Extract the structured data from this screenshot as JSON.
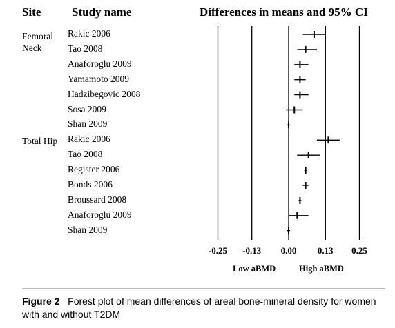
{
  "header": {
    "site": "Site",
    "study": "Study name",
    "plot_title": "Differences in means and 95% CI"
  },
  "sites": [
    "Femoral\nNeck",
    "Total Hip"
  ],
  "direction_labels": {
    "left": "Low aBMD",
    "right": "High aBMD"
  },
  "caption": {
    "figure_label": "Figure 2",
    "text": "Forest plot of mean differences of areal bone-mineral density for women with and without T2DM"
  },
  "chart_data": {
    "type": "forest",
    "title": "Differences in means and 95% CI",
    "x_ticks": [
      -0.25,
      -0.13,
      0.0,
      0.13,
      0.25
    ],
    "x_tick_labels": [
      "-0.25",
      "-0.13",
      "0.00",
      "0.13",
      "0.25"
    ],
    "xlim": [
      -0.25,
      0.25
    ],
    "groups": [
      {
        "site": "Femoral Neck",
        "studies": [
          {
            "name": "Rakic 2006",
            "mean": 0.09,
            "lower": 0.05,
            "upper": 0.13
          },
          {
            "name": "Tao 2008",
            "mean": 0.06,
            "lower": 0.03,
            "upper": 0.1
          },
          {
            "name": "Anaforoglu 2009",
            "mean": 0.04,
            "lower": 0.02,
            "upper": 0.07
          },
          {
            "name": "Yamamoto 2009",
            "mean": 0.04,
            "lower": 0.02,
            "upper": 0.06
          },
          {
            "name": "Hadzibegovic 2008",
            "mean": 0.04,
            "lower": 0.02,
            "upper": 0.07
          },
          {
            "name": "Sosa 2009",
            "mean": 0.02,
            "lower": -0.01,
            "upper": 0.05
          },
          {
            "name": "Shan 2009",
            "mean": 0.0,
            "lower": -0.005,
            "upper": 0.005
          }
        ]
      },
      {
        "site": "Total Hip",
        "studies": [
          {
            "name": "Rakic 2006",
            "mean": 0.14,
            "lower": 0.1,
            "upper": 0.18
          },
          {
            "name": "Tao 2008",
            "mean": 0.07,
            "lower": 0.03,
            "upper": 0.11
          },
          {
            "name": "Register 2006",
            "mean": 0.06,
            "lower": 0.055,
            "upper": 0.065
          },
          {
            "name": "Bonds 2006",
            "mean": 0.06,
            "lower": 0.05,
            "upper": 0.07
          },
          {
            "name": "Broussard 2008",
            "mean": 0.04,
            "lower": 0.035,
            "upper": 0.045
          },
          {
            "name": "Anaforoglu 2009",
            "mean": 0.03,
            "lower": 0.0,
            "upper": 0.07
          },
          {
            "name": "Shan 2009",
            "mean": 0.0,
            "lower": -0.005,
            "upper": 0.005
          }
        ]
      }
    ]
  }
}
